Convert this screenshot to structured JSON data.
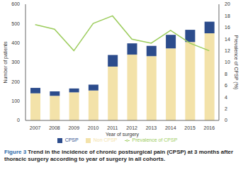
{
  "chart_data": {
    "type": "bar",
    "title": "Figure 3",
    "subtitle": "Trend in the incidence of chronic postsurgical pain (CPSP) at 3 months after thoracic surgery according to year of surgery in all cohorts.",
    "x_label": "Year of surgery",
    "y_label": "Number of patients",
    "y2_label": "Prevalence of CPSP (%)",
    "categories": [
      "2007",
      "2008",
      "2009",
      "2010",
      "2011",
      "2012",
      "2013",
      "2014",
      "2015",
      "2016"
    ],
    "series": [
      {
        "name": "Non CPSP",
        "type": "bar",
        "color": "#f3e2a9",
        "values": [
          140,
          127,
          145,
          155,
          278,
          340,
          332,
          372,
          405,
          450
        ]
      },
      {
        "name": "CPSP",
        "type": "bar",
        "color": "#2c4c8c",
        "values": [
          28,
          23,
          20,
          30,
          60,
          58,
          53,
          70,
          63,
          60
        ]
      },
      {
        "name": "Prevalence of CPSP",
        "type": "line",
        "axis": "y2",
        "color": "#9ccc5c",
        "values": [
          16.5,
          15.7,
          12,
          16.7,
          18,
          14,
          13.3,
          15.5,
          13.3,
          12
        ]
      }
    ],
    "ylim": [
      0,
      600
    ],
    "yticks": [
      0,
      100,
      200,
      300,
      400,
      500,
      600
    ],
    "y2lim": [
      0,
      20
    ],
    "y2ticks": [
      0,
      2,
      4,
      6,
      8,
      10,
      12,
      14,
      16,
      18,
      20
    ],
    "stacked": true,
    "grid": false,
    "legend": "bottom"
  }
}
